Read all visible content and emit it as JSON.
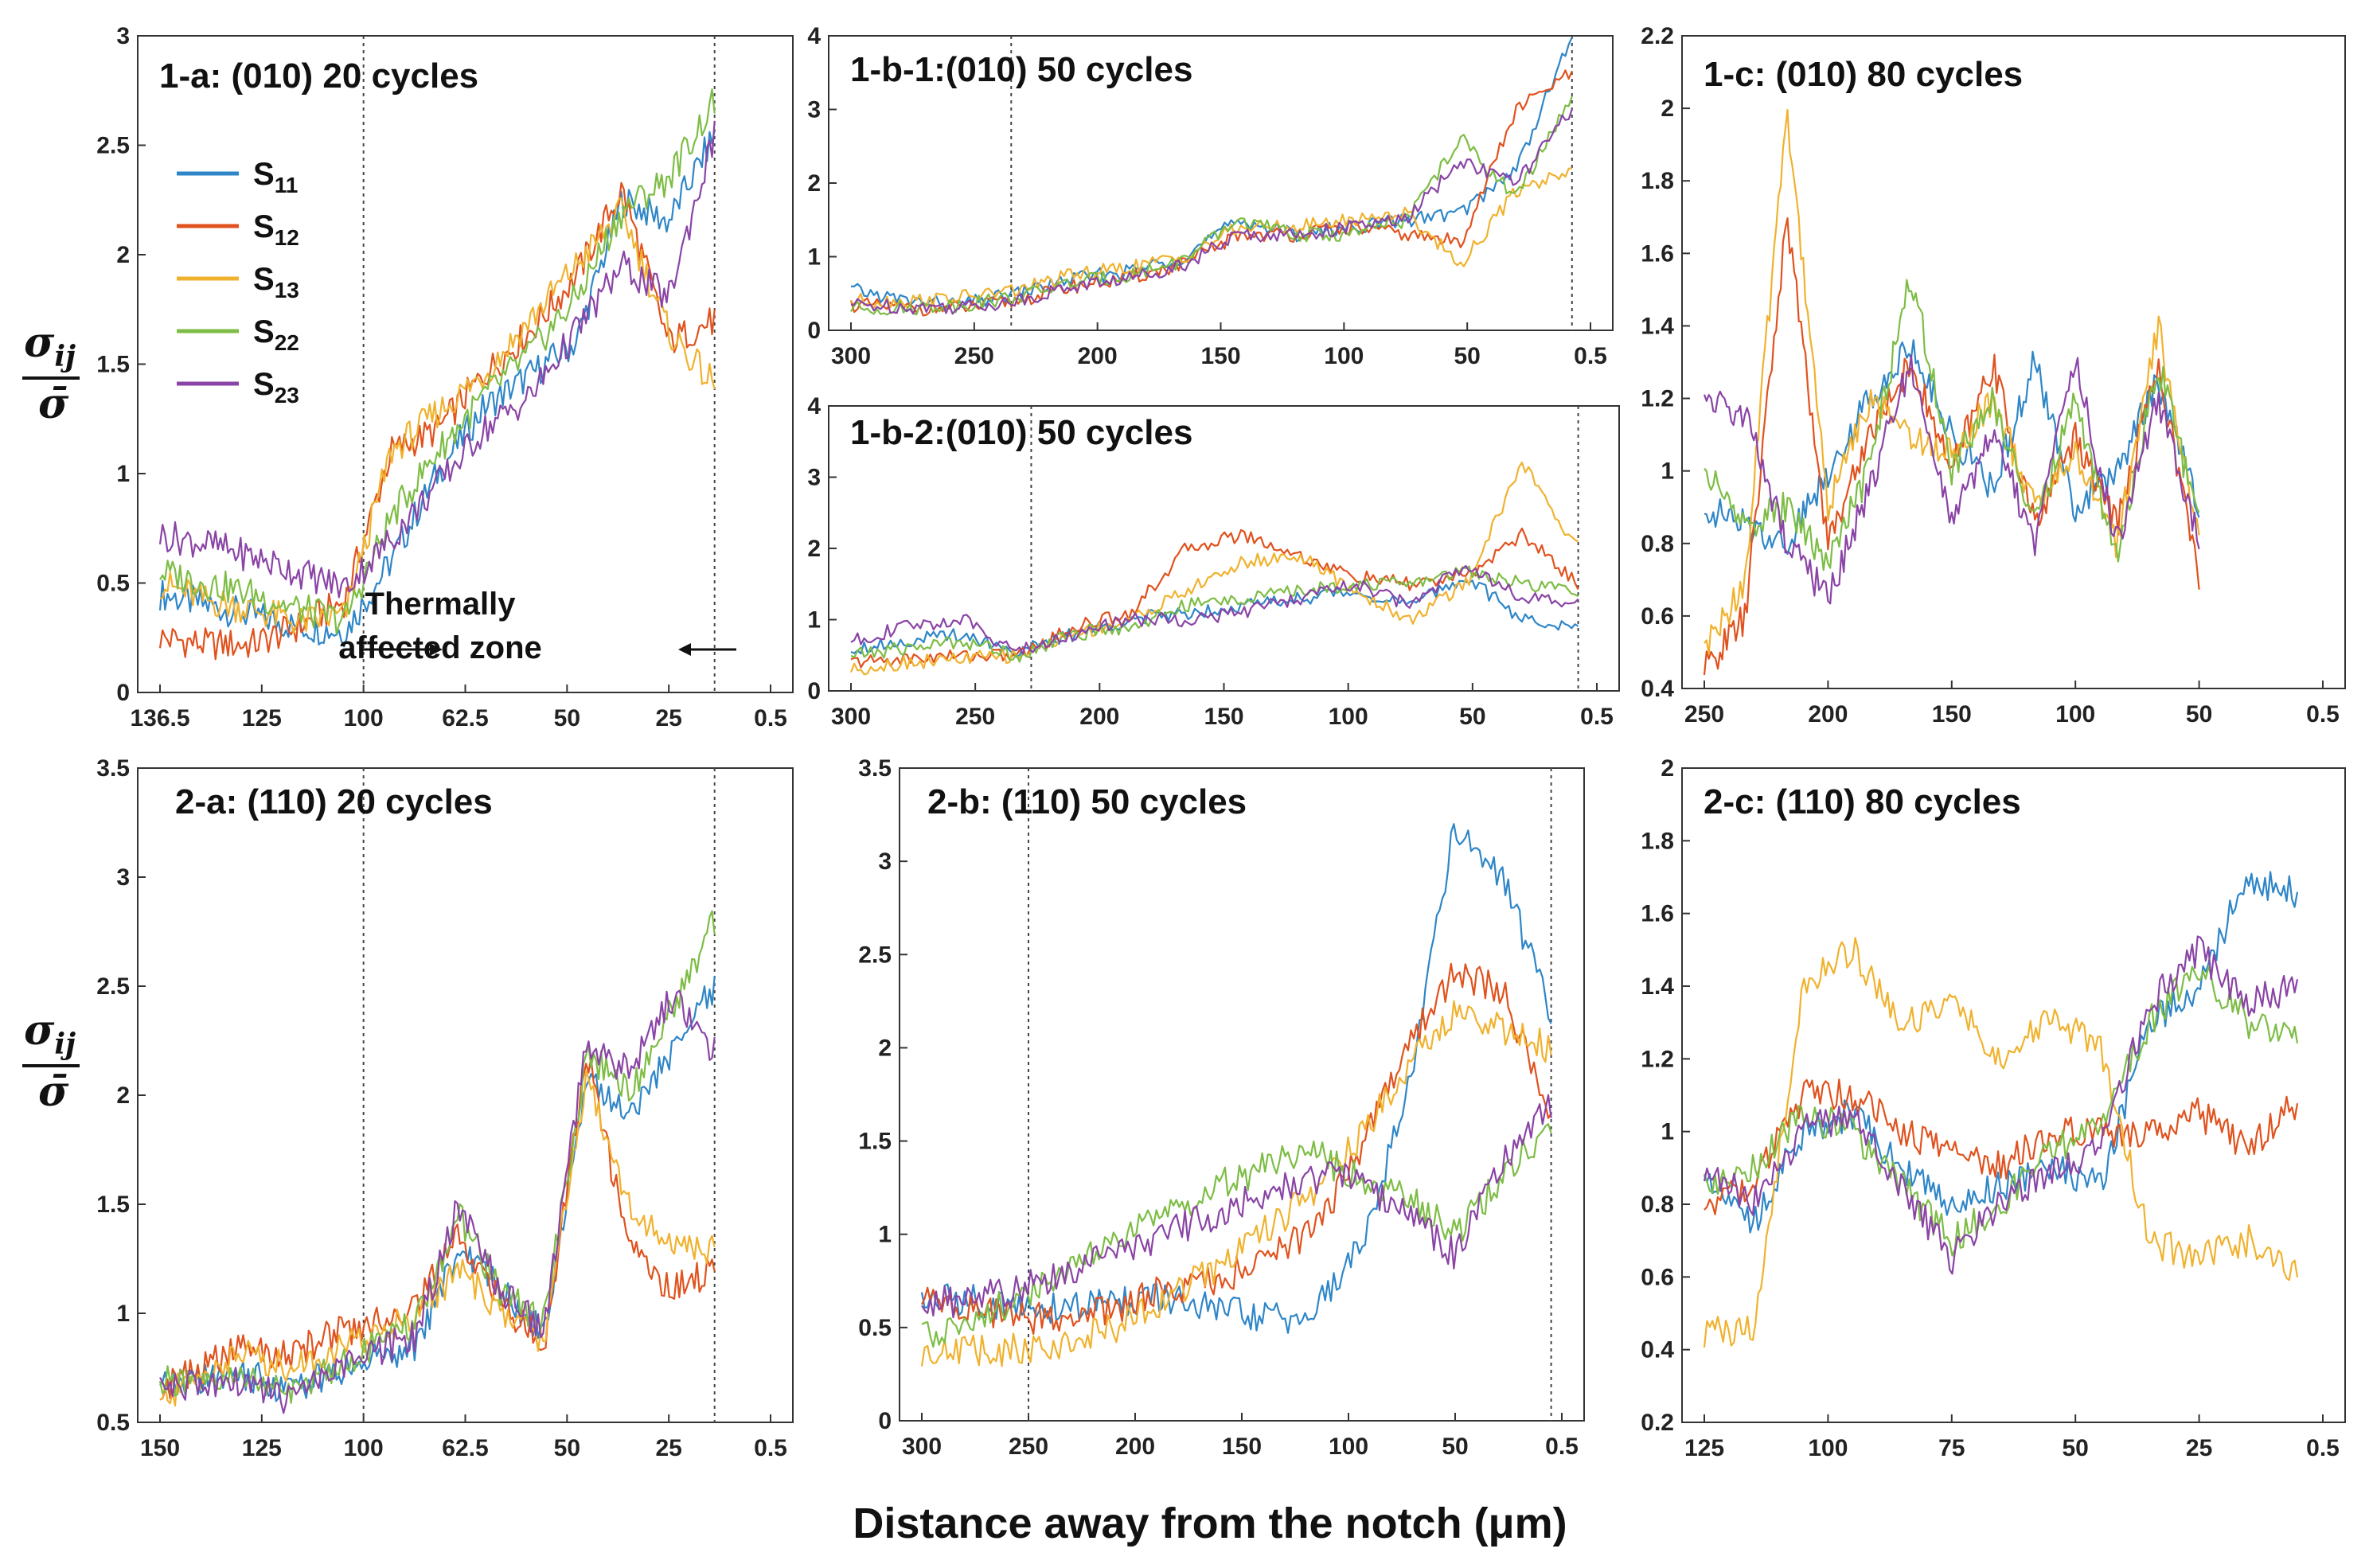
{
  "figure": {
    "xlabel": "Distance away from the notch (μm)",
    "ylabel": {
      "symbol": "σ",
      "subscript": "ij",
      "denominator": "σ̄"
    },
    "annotation": {
      "line1": "Thermally",
      "line2": "affected zone"
    }
  },
  "legend": [
    {
      "main": "S",
      "sub": "11",
      "color": "#2e86c8"
    },
    {
      "main": "S",
      "sub": "12",
      "color": "#e0521e"
    },
    {
      "main": "S",
      "sub": "13",
      "color": "#f0b22e"
    },
    {
      "main": "S",
      "sub": "22",
      "color": "#7dbd45"
    },
    {
      "main": "S",
      "sub": "23",
      "color": "#8a44a6"
    }
  ],
  "chart_data": [
    {
      "id": "1-a",
      "type": "line",
      "title": "1-a: (010) 20 cycles",
      "xtick_labels": [
        "136.5",
        "125",
        "100",
        "62.5",
        "50",
        "25",
        "0.5"
      ],
      "yticks": [
        "0",
        "0.5",
        "1",
        "1.5",
        "2",
        "2.5",
        "3"
      ],
      "ylim": [
        0,
        3
      ],
      "vlines_at_tick": [
        2,
        5.45
      ],
      "series": [
        {
          "name": "S11",
          "values": [
            0.45,
            0.4,
            0.35,
            0.3,
            0.28,
            0.6,
            1.0,
            1.3,
            1.45,
            1.6,
            2.25,
            2.15,
            2.55
          ]
        },
        {
          "name": "S12",
          "values": [
            0.25,
            0.22,
            0.22,
            0.3,
            0.42,
            1.1,
            1.2,
            1.45,
            1.65,
            1.9,
            2.3,
            1.6,
            1.7
          ]
        },
        {
          "name": "S13",
          "values": [
            0.5,
            0.42,
            0.38,
            0.32,
            0.35,
            1.1,
            1.28,
            1.45,
            1.7,
            1.95,
            2.2,
            1.65,
            1.4
          ]
        },
        {
          "name": "S22",
          "values": [
            0.55,
            0.5,
            0.45,
            0.38,
            0.33,
            0.8,
            1.1,
            1.35,
            1.55,
            1.8,
            2.2,
            2.35,
            2.7
          ]
        },
        {
          "name": "S23",
          "values": [
            0.72,
            0.68,
            0.62,
            0.55,
            0.48,
            0.7,
            0.95,
            1.2,
            1.35,
            1.65,
            1.95,
            1.8,
            2.55
          ]
        }
      ]
    },
    {
      "id": "1-b-1",
      "type": "line",
      "title": "1-b-1:(010) 50 cycles",
      "xtick_labels": [
        "300",
        "250",
        "200",
        "150",
        "100",
        "50",
        "0.5"
      ],
      "yticks": [
        "0",
        "1",
        "2",
        "3",
        "4"
      ],
      "ylim": [
        0,
        4
      ],
      "vlines_at_tick": [
        1.3,
        5.85
      ],
      "series": [
        {
          "name": "S11",
          "values": [
            0.55,
            0.4,
            0.35,
            0.5,
            0.7,
            0.8,
            1.0,
            1.5,
            1.3,
            1.4,
            1.5,
            1.6,
            2.2,
            4.0
          ]
        },
        {
          "name": "S12",
          "values": [
            0.35,
            0.3,
            0.3,
            0.4,
            0.6,
            0.7,
            0.9,
            1.3,
            1.3,
            1.4,
            1.3,
            1.2,
            3.0,
            3.5
          ]
        },
        {
          "name": "S13",
          "values": [
            0.4,
            0.4,
            0.45,
            0.55,
            0.75,
            0.85,
            1.0,
            1.4,
            1.4,
            1.5,
            1.6,
            0.9,
            1.9,
            2.2
          ]
        },
        {
          "name": "S22",
          "values": [
            0.3,
            0.3,
            0.35,
            0.45,
            0.65,
            0.75,
            0.95,
            1.5,
            1.3,
            1.3,
            1.5,
            2.6,
            1.8,
            3.2
          ]
        },
        {
          "name": "S23",
          "values": [
            0.35,
            0.32,
            0.32,
            0.4,
            0.6,
            0.7,
            0.9,
            1.3,
            1.3,
            1.4,
            1.5,
            2.3,
            2.0,
            3.0
          ]
        }
      ]
    },
    {
      "id": "1-b-2",
      "type": "line",
      "title": "1-b-2:(010) 50 cycles",
      "xtick_labels": [
        "300",
        "250",
        "200",
        "150",
        "100",
        "50",
        "0.5"
      ],
      "yticks": [
        "0",
        "1",
        "2",
        "3",
        "4"
      ],
      "ylim": [
        0,
        4
      ],
      "vlines_at_tick": [
        1.45,
        5.85
      ],
      "series": [
        {
          "name": "S11",
          "values": [
            0.6,
            0.7,
            0.8,
            0.55,
            0.8,
            1.0,
            1.1,
            1.2,
            1.3,
            1.4,
            1.2,
            1.6,
            1.0,
            0.9
          ]
        },
        {
          "name": "S12",
          "values": [
            0.4,
            0.45,
            0.5,
            0.5,
            0.9,
            1.1,
            2.0,
            2.2,
            1.9,
            1.6,
            1.5,
            1.6,
            2.2,
            1.5
          ]
        },
        {
          "name": "S13",
          "values": [
            0.3,
            0.4,
            0.45,
            0.5,
            0.8,
            1.0,
            1.4,
            1.8,
            1.9,
            1.4,
            1.0,
            1.5,
            3.2,
            2.0
          ]
        },
        {
          "name": "S22",
          "values": [
            0.5,
            0.6,
            0.7,
            0.5,
            0.8,
            0.9,
            1.2,
            1.3,
            1.4,
            1.5,
            1.5,
            1.7,
            1.5,
            1.4
          ]
        },
        {
          "name": "S23",
          "values": [
            0.7,
            0.9,
            1.0,
            0.55,
            0.8,
            1.0,
            1.0,
            1.1,
            1.3,
            1.5,
            1.2,
            1.8,
            1.3,
            1.2
          ]
        }
      ]
    },
    {
      "id": "1-c",
      "type": "line",
      "title": "1-c: (010) 80 cycles",
      "xtick_labels": [
        "250",
        "200",
        "150",
        "100",
        "50",
        "0.5"
      ],
      "yticks": [
        "0.4",
        "0.6",
        "0.8",
        "1",
        "1.2",
        "1.4",
        "1.6",
        "1.8",
        "2",
        "2.2"
      ],
      "ylim": [
        0.4,
        2.2
      ],
      "vlines_at_tick": [],
      "series": [
        {
          "name": "S11",
          "values": [
            0.9,
            0.85,
            0.8,
            1.0,
            1.2,
            1.35,
            1.1,
            0.95,
            1.3,
            0.9,
            1.0,
            1.25,
            0.9
          ]
        },
        {
          "name": "S12",
          "values": [
            0.45,
            0.6,
            1.7,
            0.8,
            1.1,
            1.3,
            1.0,
            1.3,
            0.85,
            1.1,
            0.85,
            1.3,
            0.7
          ]
        },
        {
          "name": "S13",
          "values": [
            0.5,
            0.7,
            2.0,
            0.9,
            1.2,
            1.1,
            1.05,
            1.2,
            0.9,
            1.05,
            0.8,
            1.4,
            0.8
          ]
        },
        {
          "name": "S22",
          "values": [
            1.0,
            0.85,
            0.9,
            0.75,
            1.0,
            1.55,
            1.0,
            1.2,
            0.85,
            1.2,
            0.75,
            1.3,
            0.85
          ]
        },
        {
          "name": "S23",
          "values": [
            1.2,
            1.15,
            0.8,
            0.65,
            0.95,
            1.3,
            0.85,
            1.1,
            0.8,
            1.3,
            0.8,
            1.2,
            0.8
          ]
        }
      ]
    },
    {
      "id": "2-a",
      "type": "line",
      "title": "2-a: (110) 20 cycles",
      "xtick_labels": [
        "150",
        "125",
        "100",
        "62.5",
        "50",
        "25",
        "0.5"
      ],
      "yticks": [
        "0.5",
        "1",
        "1.5",
        "2",
        "2.5",
        "3",
        "3.5"
      ],
      "ylim": [
        0.5,
        3.5
      ],
      "vlines_at_tick": [
        2,
        5.45
      ],
      "series": [
        {
          "name": "S11",
          "values": [
            0.65,
            0.7,
            0.72,
            0.65,
            0.72,
            0.8,
            0.85,
            1.3,
            1.1,
            0.9,
            2.1,
            1.9,
            2.2,
            2.5
          ]
        },
        {
          "name": "S12",
          "values": [
            0.65,
            0.75,
            0.85,
            0.8,
            0.9,
            0.95,
            1.05,
            1.35,
            1.05,
            0.85,
            2.2,
            1.3,
            1.1,
            1.2
          ]
        },
        {
          "name": "S13",
          "values": [
            0.6,
            0.72,
            0.82,
            0.75,
            0.82,
            0.9,
            1.0,
            1.2,
            1.0,
            0.88,
            2.1,
            1.5,
            1.3,
            1.3
          ]
        },
        {
          "name": "S22",
          "values": [
            0.7,
            0.65,
            0.72,
            0.62,
            0.75,
            0.85,
            0.95,
            1.45,
            1.1,
            0.95,
            2.2,
            2.0,
            2.4,
            2.8
          ]
        },
        {
          "name": "S23",
          "values": [
            0.68,
            0.66,
            0.68,
            0.6,
            0.72,
            0.82,
            0.9,
            1.5,
            1.1,
            0.92,
            2.25,
            2.1,
            2.45,
            2.2
          ]
        }
      ]
    },
    {
      "id": "2-b",
      "type": "line",
      "title": "2-b: (110) 50 cycles",
      "xtick_labels": [
        "300",
        "250",
        "200",
        "150",
        "100",
        "50",
        "0.5"
      ],
      "yticks": [
        "0",
        "0.5",
        "1",
        "1.5",
        "2",
        "2.5",
        "3",
        "3.5"
      ],
      "ylim": [
        0,
        3.5
      ],
      "vlines_at_tick": [
        1.0,
        5.9
      ],
      "series": [
        {
          "name": "S11",
          "values": [
            0.65,
            0.65,
            0.6,
            0.6,
            0.65,
            0.65,
            0.6,
            0.55,
            0.55,
            0.9,
            1.7,
            3.2,
            2.9,
            2.2
          ]
        },
        {
          "name": "S12",
          "values": [
            0.65,
            0.6,
            0.55,
            0.55,
            0.6,
            0.7,
            0.75,
            0.85,
            1.0,
            1.4,
            2.0,
            2.4,
            2.3,
            1.6
          ]
        },
        {
          "name": "S13",
          "values": [
            0.38,
            0.38,
            0.38,
            0.42,
            0.5,
            0.65,
            0.8,
            1.0,
            1.2,
            1.5,
            1.9,
            2.2,
            2.1,
            2.0
          ]
        },
        {
          "name": "S22",
          "values": [
            0.45,
            0.55,
            0.65,
            0.8,
            0.95,
            1.1,
            1.25,
            1.35,
            1.45,
            1.3,
            1.2,
            1.0,
            1.3,
            1.6
          ]
        },
        {
          "name": "S23",
          "values": [
            0.62,
            0.65,
            0.7,
            0.8,
            0.9,
            1.0,
            1.1,
            1.2,
            1.3,
            1.3,
            1.1,
            0.9,
            1.4,
            1.7
          ]
        }
      ]
    },
    {
      "id": "2-c",
      "type": "line",
      "title": "2-c: (110) 80 cycles",
      "xtick_labels": [
        "125",
        "100",
        "75",
        "50",
        "25",
        "0.5"
      ],
      "yticks": [
        "0.2",
        "0.4",
        "0.6",
        "0.8",
        "1",
        "1.2",
        "1.4",
        "1.6",
        "1.8",
        "2"
      ],
      "ylim": [
        0.2,
        2.0
      ],
      "vlines_at_tick": [],
      "series": [
        {
          "name": "S11",
          "values": [
            0.9,
            0.75,
            1.0,
            1.05,
            0.9,
            0.8,
            0.85,
            0.9,
            0.85,
            1.3,
            1.4,
            1.7,
            1.65
          ]
        },
        {
          "name": "S12",
          "values": [
            0.8,
            0.85,
            1.1,
            1.1,
            1.0,
            0.95,
            0.9,
            1.0,
            1.0,
            1.0,
            1.05,
            0.95,
            1.08
          ]
        },
        {
          "name": "S13",
          "values": [
            0.45,
            0.45,
            1.4,
            1.5,
            1.3,
            1.35,
            1.2,
            1.3,
            1.25,
            0.7,
            0.65,
            0.7,
            0.6
          ]
        },
        {
          "name": "S22",
          "values": [
            0.85,
            0.9,
            1.05,
            1.0,
            0.85,
            0.7,
            0.8,
            0.95,
            1.0,
            1.3,
            1.45,
            1.3,
            1.25
          ]
        },
        {
          "name": "S23",
          "values": [
            0.9,
            0.8,
            1.0,
            1.05,
            0.85,
            0.65,
            0.8,
            0.9,
            0.95,
            1.35,
            1.5,
            1.35,
            1.4
          ]
        }
      ]
    }
  ]
}
